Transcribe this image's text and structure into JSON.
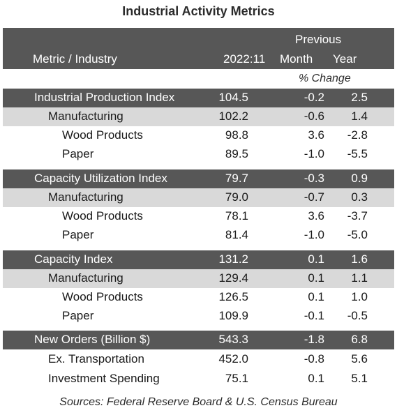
{
  "title": "Industrial Activity Metrics",
  "header": {
    "metric_label": "Metric / Industry",
    "period": "2022:11",
    "previous": "Previous",
    "month": "Month",
    "year": "Year",
    "pct_change": "% Change"
  },
  "rows": [
    {
      "label": "Industrial Production Index",
      "value": "104.5",
      "month": "-0.2",
      "year": "2.5"
    },
    {
      "label": "Manufacturing",
      "value": "102.2",
      "month": "-0.6",
      "year": "1.4"
    },
    {
      "label": "Wood Products",
      "value": "98.8",
      "month": "3.6",
      "year": "-2.8"
    },
    {
      "label": "Paper",
      "value": "89.5",
      "month": "-1.0",
      "year": "-5.5"
    },
    {
      "label": "Capacity Utilization Index",
      "value": "79.7",
      "month": "-0.3",
      "year": "0.9"
    },
    {
      "label": "Manufacturing",
      "value": "79.0",
      "month": "-0.7",
      "year": "0.3"
    },
    {
      "label": "Wood Products",
      "value": "78.1",
      "month": "3.6",
      "year": "-3.7"
    },
    {
      "label": "Paper",
      "value": "81.4",
      "month": "-1.0",
      "year": "-5.0"
    },
    {
      "label": "Capacity Index",
      "value": "131.2",
      "month": "0.1",
      "year": "1.6"
    },
    {
      "label": "Manufacturing",
      "value": "129.4",
      "month": "0.1",
      "year": "1.1"
    },
    {
      "label": "Wood Products",
      "value": "126.5",
      "month": "0.1",
      "year": "1.0"
    },
    {
      "label": "Paper",
      "value": "109.9",
      "month": "-0.1",
      "year": "-0.5"
    },
    {
      "label": "New Orders (Billion $)",
      "value": "543.3",
      "month": "-1.8",
      "year": "6.8"
    },
    {
      "label": "Ex. Transportation",
      "value": "452.0",
      "month": "-0.8",
      "year": "5.6"
    },
    {
      "label": "Investment Spending",
      "value": "75.1",
      "month": "0.1",
      "year": "5.1"
    }
  ],
  "source": "Sources: Federal Reserve Board & U.S. Census Bureau",
  "colors": {
    "dark_band": "#575757",
    "light_band": "#d9d9d9"
  }
}
